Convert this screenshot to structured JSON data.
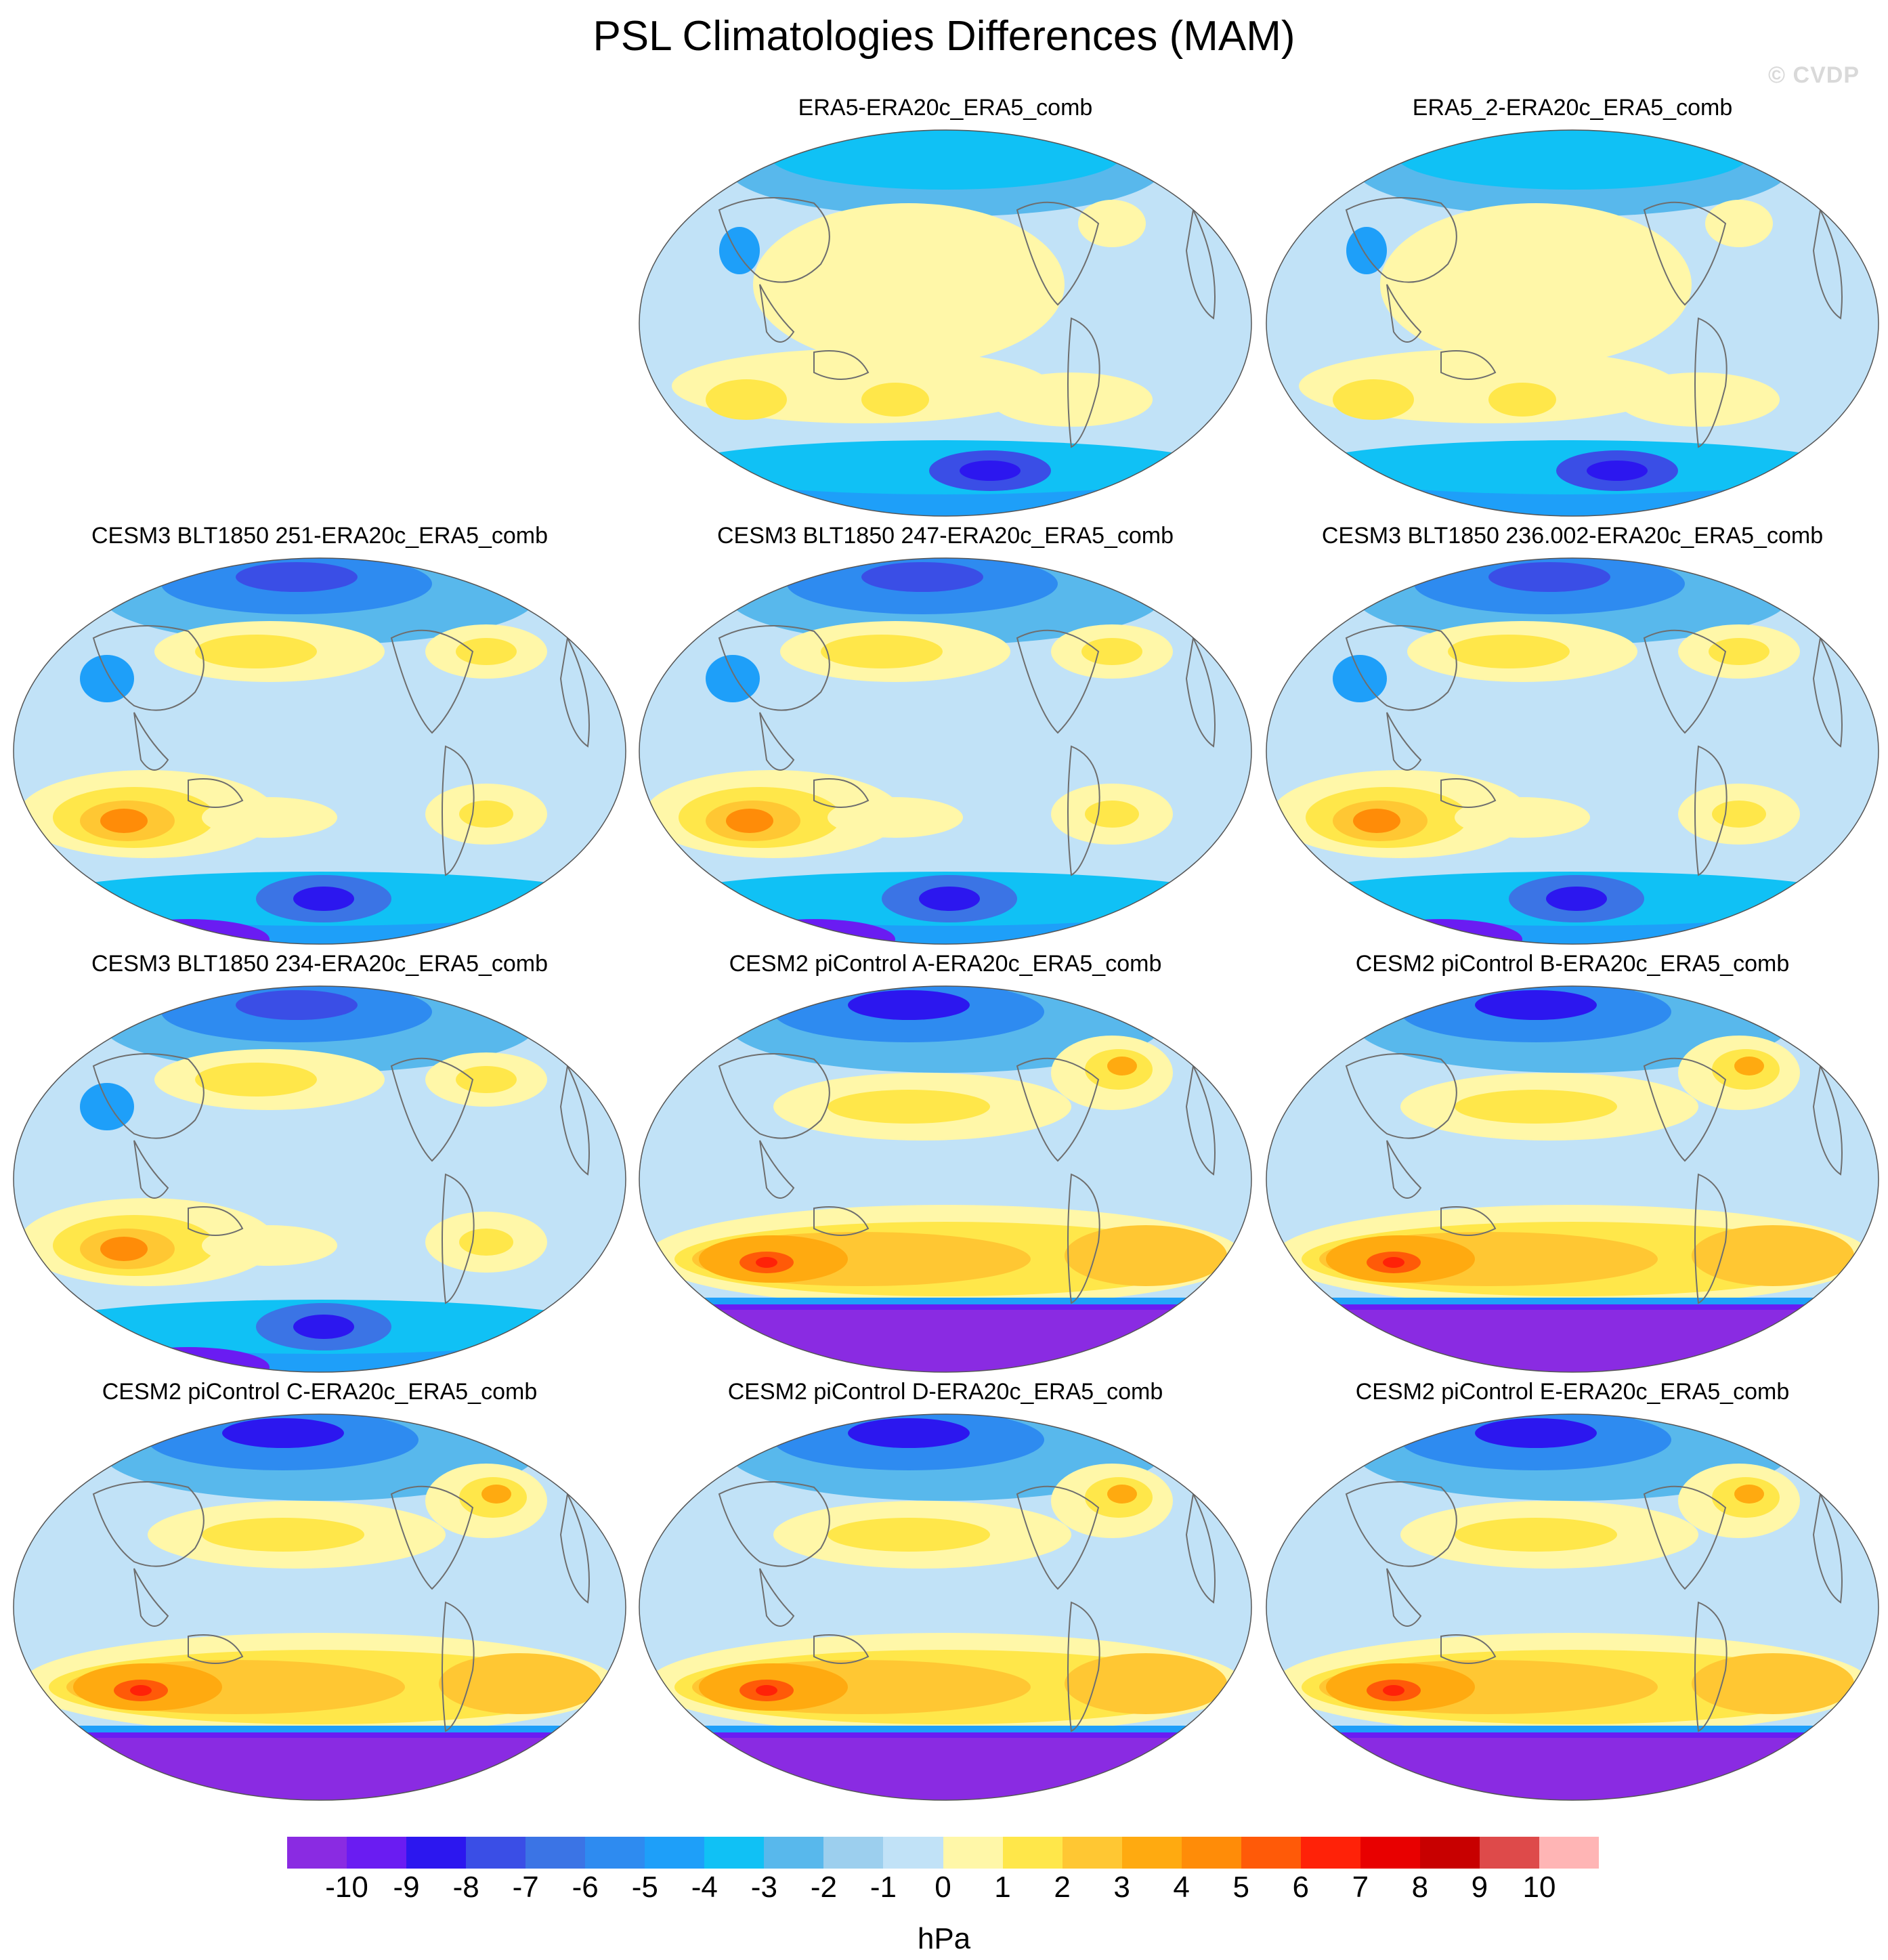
{
  "title": "PSL Climatologies Differences (MAM)",
  "watermark": "© CVDP",
  "units": "hPa",
  "colorbar": {
    "colors": [
      "#8a2be2",
      "#6a1cf2",
      "#2c17ef",
      "#3a4ee6",
      "#3b74e5",
      "#2e8bf0",
      "#1e9ff9",
      "#10c1f5",
      "#58b8ec",
      "#9ccfee",
      "#c1e2f7",
      "#fff7a8",
      "#ffe74a",
      "#ffc733",
      "#ffaa10",
      "#ff8c08",
      "#ff5a08",
      "#ff2208",
      "#e80000",
      "#c80000",
      "#de4a4a",
      "#ffb5b5"
    ],
    "tick_labels": [
      "-10",
      "-9",
      "-8",
      "-7",
      "-6",
      "-5",
      "-4",
      "-3",
      "-2",
      "-1",
      "0",
      "1",
      "2",
      "3",
      "4",
      "5",
      "6",
      "7",
      "8",
      "9",
      "10"
    ]
  },
  "panels": [
    {
      "title": "ERA5-ERA20c_ERA5_comb",
      "style": "era"
    },
    {
      "title": "ERA5_2-ERA20c_ERA5_comb",
      "style": "era"
    },
    {
      "title": "CESM3 BLT1850 251-ERA20c_ERA5_comb",
      "style": "cesm3"
    },
    {
      "title": "CESM3 BLT1850 247-ERA20c_ERA5_comb",
      "style": "cesm3"
    },
    {
      "title": "CESM3 BLT1850 236.002-ERA20c_ERA5_comb",
      "style": "cesm3"
    },
    {
      "title": "CESM3 BLT1850 234-ERA20c_ERA5_comb",
      "style": "cesm3"
    },
    {
      "title": "CESM2 piControl A-ERA20c_ERA5_comb",
      "style": "cesm2"
    },
    {
      "title": "CESM2 piControl B-ERA20c_ERA5_comb",
      "style": "cesm2"
    },
    {
      "title": "CESM2 piControl C-ERA20c_ERA5_comb",
      "style": "cesm2"
    },
    {
      "title": "CESM2 piControl D-ERA20c_ERA5_comb",
      "style": "cesm2"
    },
    {
      "title": "CESM2 piControl E-ERA20c_ERA5_comb",
      "style": "cesm2"
    }
  ]
}
